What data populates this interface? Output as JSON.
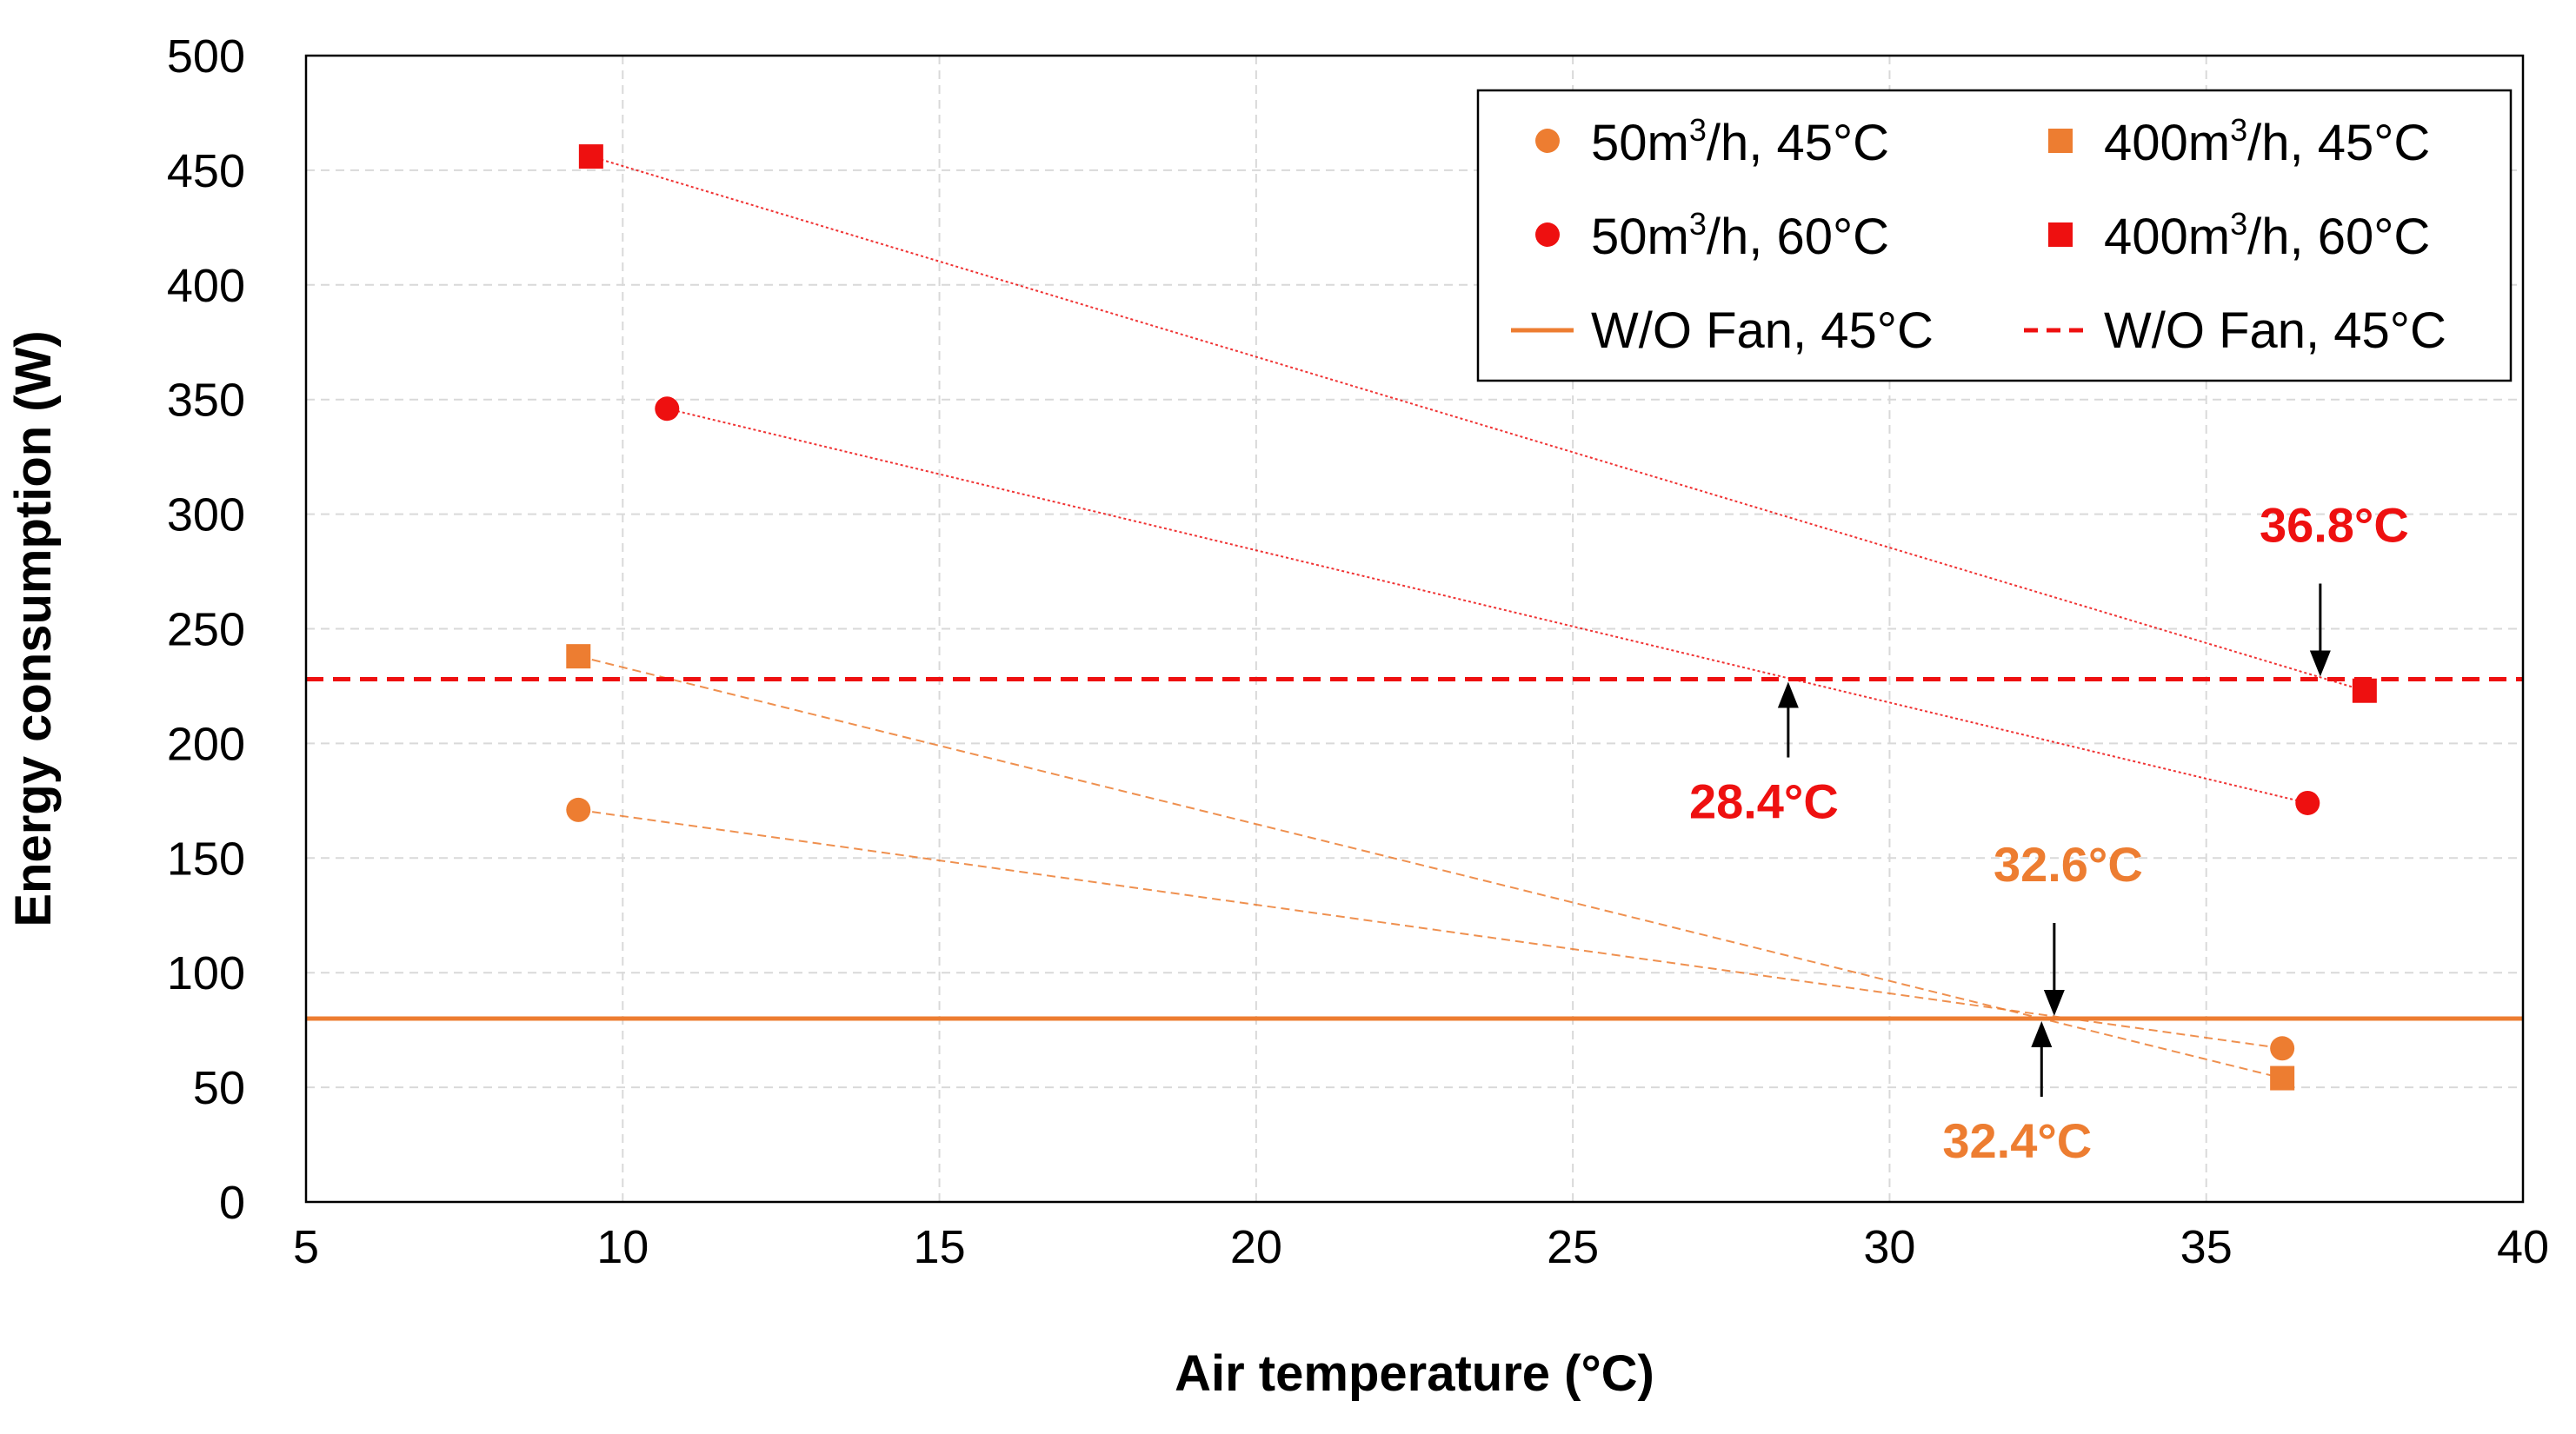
{
  "chart_data": {
    "type": "scatter",
    "title": "",
    "xlabel": "Air temperature (°C)",
    "ylabel": "Energy consumption (W)",
    "xlim": [
      5,
      40
    ],
    "ylim": [
      0,
      500
    ],
    "xticks": [
      "5",
      "10",
      "15",
      "20",
      "25",
      "30",
      "35",
      "40"
    ],
    "yticks": [
      "0",
      "50",
      "100",
      "150",
      "200",
      "250",
      "300",
      "350",
      "400",
      "450",
      "500"
    ],
    "grid": true,
    "legend_position": "top-right",
    "series": [
      {
        "name": "50m³/h, 45°C",
        "label_main": "50m",
        "label_sup": "3",
        "label_rest": "/h, 45°C",
        "marker": "circle",
        "color": "#ED7D31",
        "x": [
          9.3,
          36.2
        ],
        "y": [
          171,
          67
        ]
      },
      {
        "name": "400m³/h, 45°C",
        "label_main": "400m",
        "label_sup": "3",
        "label_rest": "/h, 45°C",
        "marker": "square",
        "color": "#ED7D31",
        "x": [
          9.3,
          36.2
        ],
        "y": [
          238,
          54
        ]
      },
      {
        "name": "50m³/h, 60°C",
        "label_main": "50m",
        "label_sup": "3",
        "label_rest": "/h, 60°C",
        "marker": "circle",
        "color": "#EE1010",
        "x": [
          10.7,
          36.6
        ],
        "y": [
          346,
          174
        ]
      },
      {
        "name": "400m³/h, 60°C",
        "label_main": "400m",
        "label_sup": "3",
        "label_rest": "/h, 60°C",
        "marker": "square",
        "color": "#EE1010",
        "x": [
          9.5,
          37.5
        ],
        "y": [
          456,
          223
        ]
      }
    ],
    "reference_lines": [
      {
        "name": "W/O Fan, 45°C",
        "y": 80,
        "style": "solid",
        "color": "#ED7D31"
      },
      {
        "name": "W/O Fan, 45°C",
        "y": 228,
        "style": "dashed",
        "color": "#EE1010"
      }
    ],
    "annotations": [
      {
        "text": "36.8°C",
        "x": 36.8,
        "y": 228,
        "color": "#EE1010",
        "direction": "down"
      },
      {
        "text": "28.4°C",
        "x": 28.4,
        "y": 228,
        "color": "#EE1010",
        "direction": "up"
      },
      {
        "text": "32.6°C",
        "x": 32.6,
        "y": 80,
        "color": "#ED7D31",
        "direction": "down"
      },
      {
        "text": "32.4°C",
        "x": 32.4,
        "y": 80,
        "color": "#ED7D31",
        "direction": "up"
      }
    ]
  }
}
